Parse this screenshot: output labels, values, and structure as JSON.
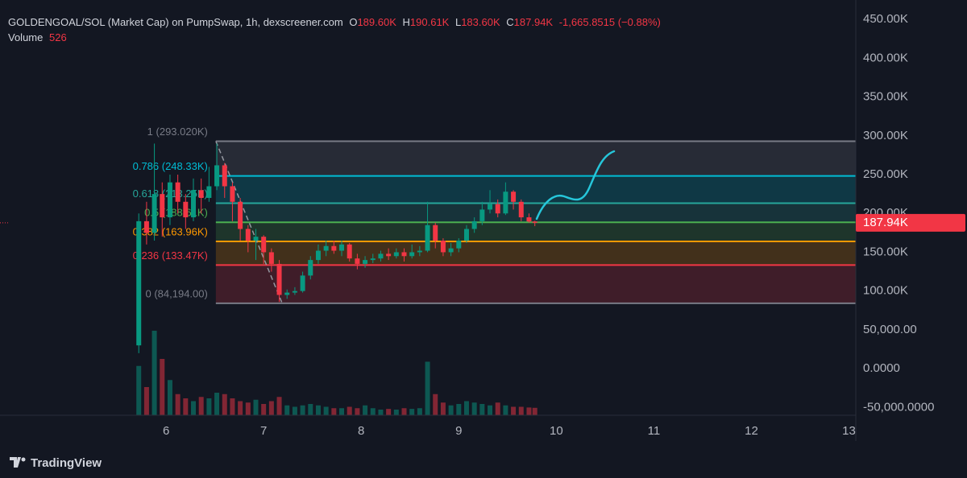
{
  "chart_data": {
    "type": "candlestick",
    "header": {
      "symbol": "GOLDENGOAL/SOL (Market Cap) on PumpSwap, 1h, dexscreener.com",
      "o_key": "O",
      "o": "189.60K",
      "h_key": "H",
      "h": "190.61K",
      "l_key": "L",
      "l": "183.60K",
      "c_key": "C",
      "c": "187.94K",
      "change": "-1,665.8515 (−0.88%)",
      "volume_key": "Volume",
      "volume": "526"
    },
    "brand": "TradingView",
    "up_color": "#089981",
    "down_color": "#f23645",
    "grid": false,
    "x": [
      5.72,
      5.8,
      5.88,
      5.96,
      6.04,
      6.12,
      6.2,
      6.28,
      6.36,
      6.44,
      6.52,
      6.6,
      6.68,
      6.76,
      6.84,
      6.92,
      7.0,
      7.08,
      7.16,
      7.24,
      7.32,
      7.4,
      7.48,
      7.56,
      7.64,
      7.72,
      7.8,
      7.88,
      7.96,
      8.04,
      8.12,
      8.2,
      8.28,
      8.36,
      8.44,
      8.52,
      8.6,
      8.68,
      8.76,
      8.84,
      8.92,
      9.0,
      9.08,
      9.16,
      9.24,
      9.32,
      9.4,
      9.48,
      9.56,
      9.64,
      9.72,
      9.78
    ],
    "open": [
      30000,
      190000,
      175000,
      225000,
      195000,
      240000,
      215000,
      195000,
      230000,
      220000,
      235000,
      262000,
      235000,
      215000,
      180000,
      165000,
      170000,
      150000,
      135000,
      95000,
      98000,
      100000,
      120000,
      140000,
      152000,
      158000,
      152000,
      160000,
      142000,
      135000,
      140000,
      142000,
      148000,
      145000,
      150000,
      145000,
      150000,
      152000,
      185000,
      165000,
      150000,
      155000,
      165000,
      180000,
      190000,
      205000,
      212000,
      200000,
      228000,
      215000,
      195000,
      189600
    ],
    "high": [
      200000,
      215000,
      290000,
      240000,
      250000,
      250000,
      225000,
      245000,
      245000,
      260000,
      290000,
      265000,
      240000,
      220000,
      185000,
      180000,
      172000,
      155000,
      140000,
      102000,
      105000,
      125000,
      145000,
      160000,
      165000,
      165000,
      165000,
      162000,
      148000,
      145000,
      148000,
      152000,
      155000,
      155000,
      155000,
      160000,
      158000,
      215000,
      188000,
      168000,
      162000,
      168000,
      185000,
      195000,
      215000,
      230000,
      218000,
      240000,
      230000,
      218000,
      200000,
      190610
    ],
    "low": [
      20000,
      160000,
      165000,
      170000,
      185000,
      200000,
      180000,
      190000,
      200000,
      215000,
      230000,
      220000,
      190000,
      165000,
      150000,
      140000,
      135000,
      125000,
      86000,
      90000,
      95000,
      98000,
      115000,
      135000,
      145000,
      148000,
      145000,
      138000,
      128000,
      130000,
      136000,
      138000,
      140000,
      142000,
      138000,
      142000,
      145000,
      150000,
      155000,
      145000,
      145000,
      150000,
      162000,
      175000,
      185000,
      200000,
      195000,
      198000,
      205000,
      190000,
      188000,
      183600
    ],
    "close": [
      190000,
      175000,
      225000,
      195000,
      240000,
      215000,
      195000,
      230000,
      220000,
      235000,
      262000,
      235000,
      215000,
      180000,
      165000,
      170000,
      150000,
      135000,
      95000,
      98000,
      100000,
      120000,
      140000,
      152000,
      158000,
      152000,
      160000,
      142000,
      135000,
      140000,
      142000,
      148000,
      145000,
      150000,
      145000,
      150000,
      152000,
      185000,
      165000,
      150000,
      155000,
      165000,
      180000,
      190000,
      205000,
      212000,
      200000,
      228000,
      215000,
      195000,
      189600,
      187940
    ],
    "volume": [
      3500,
      2000,
      6000,
      4000,
      2500,
      1500,
      1200,
      1000,
      1300,
      1200,
      1600,
      1500,
      1200,
      1000,
      900,
      1100,
      800,
      1000,
      1300,
      700,
      600,
      700,
      800,
      700,
      600,
      500,
      500,
      600,
      500,
      700,
      500,
      400,
      450,
      400,
      500,
      450,
      500,
      3800,
      1500,
      900,
      700,
      800,
      1000,
      900,
      800,
      700,
      900,
      700,
      600,
      600,
      550,
      526
    ],
    "last_label": "187.94K",
    "xlim": [
      4.38,
      13.07
    ],
    "xticks": [
      6,
      7,
      8,
      9,
      10,
      11,
      12,
      13
    ],
    "ylim": [
      -60000,
      475000
    ],
    "yticks": [
      {
        "value": 450000,
        "label": "450.00K"
      },
      {
        "value": 400000,
        "label": "400.00K"
      },
      {
        "value": 350000,
        "label": "350.00K"
      },
      {
        "value": 300000,
        "label": "300.00K"
      },
      {
        "value": 250000,
        "label": "250.00K"
      },
      {
        "value": 200000,
        "label": "200.00K"
      },
      {
        "value": 150000,
        "label": "150.00K"
      },
      {
        "value": 100000,
        "label": "100.00K"
      },
      {
        "value": 50000,
        "label": "50,000.00"
      },
      {
        "value": 0,
        "label": "0.0000"
      },
      {
        "value": -50000,
        "label": "-50,000.0000"
      }
    ],
    "fib": {
      "x": [
        6.51,
        7.19
      ],
      "levels": [
        {
          "label": "1 (293.020K)",
          "value": 293020,
          "color": "#787b86"
        },
        {
          "label": "0.786 (248.33K)",
          "value": 248330,
          "color": "#00bcd4"
        },
        {
          "label": "0.618 (213.25K)",
          "value": 213250,
          "color": "#26a69a"
        },
        {
          "label": "0.5 (188.61K)",
          "value": 188610,
          "color": "#4caf50"
        },
        {
          "label": "0.382 (163.96K)",
          "value": 163960,
          "color": "#ff9800"
        },
        {
          "label": "0.236 (133.47K)",
          "value": 133470,
          "color": "#f23645"
        },
        {
          "label": "0 (84,194.00)",
          "value": 84194,
          "color": "#787b86"
        }
      ]
    }
  }
}
